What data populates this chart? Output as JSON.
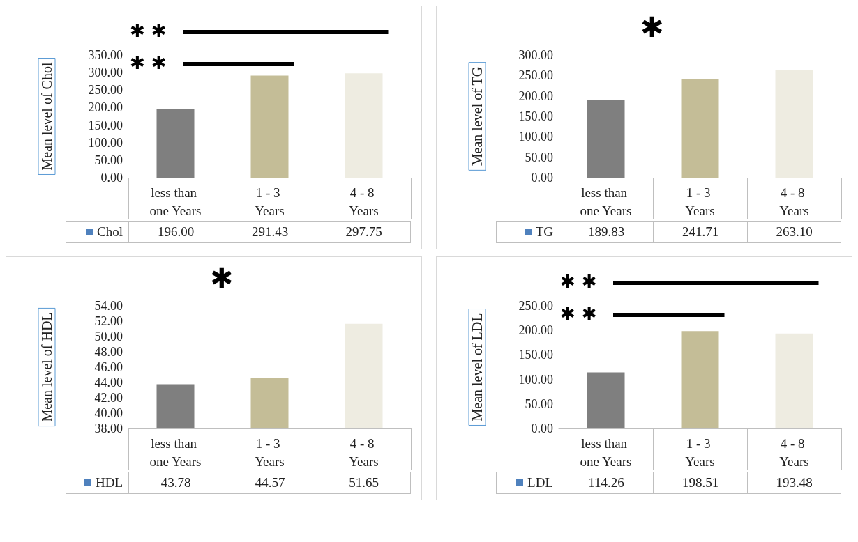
{
  "chart_data": [
    {
      "type": "bar",
      "ylabel": "Mean level of Chol",
      "categories": [
        "less than one Years",
        "1 - 3 Years",
        "4 - 8 Years"
      ],
      "series": [
        {
          "name": "Chol",
          "values": [
            196,
            291.43,
            297.75
          ],
          "value_labels": [
            "196.00",
            "291.43",
            "297.75"
          ]
        }
      ],
      "colors": [
        "#7f7f7f",
        "#c4bd97",
        "#eeece1"
      ],
      "ylim": [
        0,
        350
      ],
      "yticks": [
        {
          "value": 0,
          "label": "0.00"
        },
        {
          "value": 50,
          "label": "50.00"
        },
        {
          "value": 100,
          "label": "100.00"
        },
        {
          "value": 150,
          "label": "150.00"
        },
        {
          "value": 200,
          "label": "200.00"
        },
        {
          "value": 250,
          "label": "250.00"
        },
        {
          "value": 300,
          "label": "300.00"
        },
        {
          "value": 350,
          "label": "350.00"
        }
      ],
      "annotations": [
        "✱ ✱",
        "✱ ✱"
      ]
    },
    {
      "type": "bar",
      "ylabel": "Mean level of TG",
      "categories": [
        "less than one Years",
        "1 - 3 Years",
        "4 - 8 Years"
      ],
      "series": [
        {
          "name": "TG",
          "values": [
            189.83,
            241.71,
            263.1
          ],
          "value_labels": [
            "189.83",
            "241.71",
            "263.10"
          ]
        }
      ],
      "colors": [
        "#7f7f7f",
        "#c4bd97",
        "#eeece1"
      ],
      "ylim": [
        0,
        300
      ],
      "yticks": [
        {
          "value": 0,
          "label": "0.00"
        },
        {
          "value": 50,
          "label": "50.00"
        },
        {
          "value": 100,
          "label": "100.00"
        },
        {
          "value": 150,
          "label": "150.00"
        },
        {
          "value": 200,
          "label": "200.00"
        },
        {
          "value": 250,
          "label": "250.00"
        },
        {
          "value": 300,
          "label": "300.00"
        }
      ],
      "annotations": [
        "✱"
      ]
    },
    {
      "type": "bar",
      "ylabel": "Mean level of HDL",
      "categories": [
        "less than one Years",
        "1 - 3 Years",
        "4 - 8 Years"
      ],
      "series": [
        {
          "name": "HDL",
          "values": [
            43.78,
            44.57,
            51.65
          ],
          "value_labels": [
            "43.78",
            "44.57",
            "51.65"
          ]
        }
      ],
      "colors": [
        "#7f7f7f",
        "#c4bd97",
        "#eeece1"
      ],
      "ylim": [
        38,
        54
      ],
      "yticks": [
        {
          "value": 38,
          "label": "38.00"
        },
        {
          "value": 40,
          "label": "40.00"
        },
        {
          "value": 42,
          "label": "42.00"
        },
        {
          "value": 44,
          "label": "44.00"
        },
        {
          "value": 46,
          "label": "46.00"
        },
        {
          "value": 48,
          "label": "48.00"
        },
        {
          "value": 50,
          "label": "50.00"
        },
        {
          "value": 52,
          "label": "52.00"
        },
        {
          "value": 54,
          "label": "54.00"
        }
      ],
      "annotations": [
        "✱"
      ]
    },
    {
      "type": "bar",
      "ylabel": "Mean level of LDL",
      "categories": [
        "less than one Years",
        "1 - 3 Years",
        "4 - 8 Years"
      ],
      "series": [
        {
          "name": "LDL",
          "values": [
            114.26,
            198.51,
            193.48
          ],
          "value_labels": [
            "114.26",
            "198.51",
            "193.48"
          ]
        }
      ],
      "colors": [
        "#7f7f7f",
        "#c4bd97",
        "#eeece1"
      ],
      "ylim": [
        0,
        250
      ],
      "yticks": [
        {
          "value": 0,
          "label": "0.00"
        },
        {
          "value": 50,
          "label": "50.00"
        },
        {
          "value": 100,
          "label": "100.00"
        },
        {
          "value": 150,
          "label": "150.00"
        },
        {
          "value": 200,
          "label": "200.00"
        },
        {
          "value": 250,
          "label": "250.00"
        }
      ],
      "annotations": [
        "✱ ✱",
        "✱ ✱"
      ]
    }
  ]
}
